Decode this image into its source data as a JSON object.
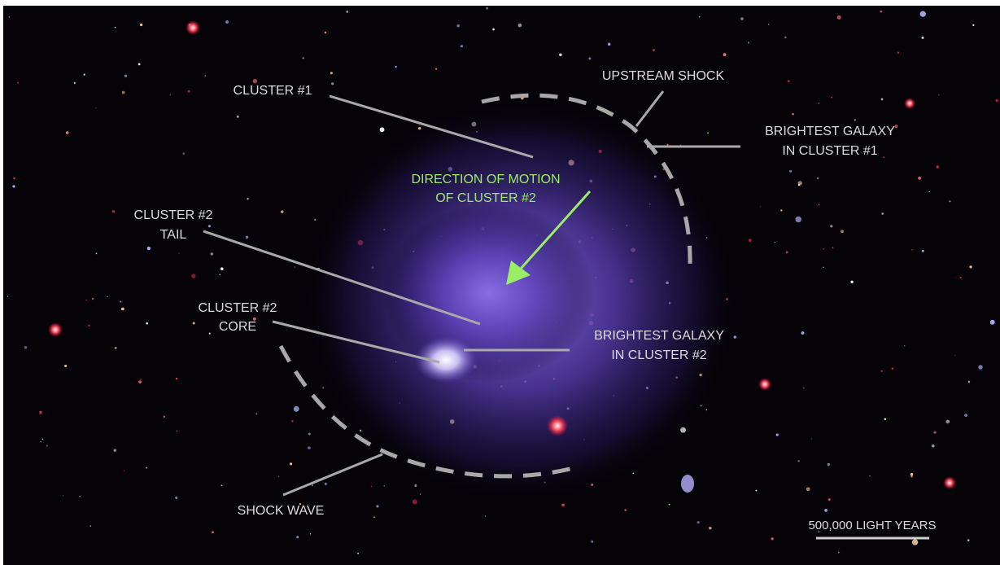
{
  "annotations": [
    {
      "lines": [
        "CLUSTER #1"
      ]
    },
    {
      "lines": [
        "UPSTREAM SHOCK"
      ]
    },
    {
      "lines": [
        "BRIGHTEST GALAXY",
        "IN CLUSTER #1"
      ]
    },
    {
      "lines": [
        "DIRECTION OF MOTION",
        "OF CLUSTER #2"
      ]
    },
    {
      "lines": [
        "CLUSTER #2",
        "TAIL"
      ]
    },
    {
      "lines": [
        "CLUSTER #2",
        "CORE"
      ]
    },
    {
      "lines": [
        "BRIGHTEST GALAXY",
        "IN CLUSTER #2"
      ]
    },
    {
      "lines": [
        "SHOCK WAVE"
      ]
    }
  ],
  "scale_bar": {
    "label": "500,000 LIGHT YEARS"
  }
}
